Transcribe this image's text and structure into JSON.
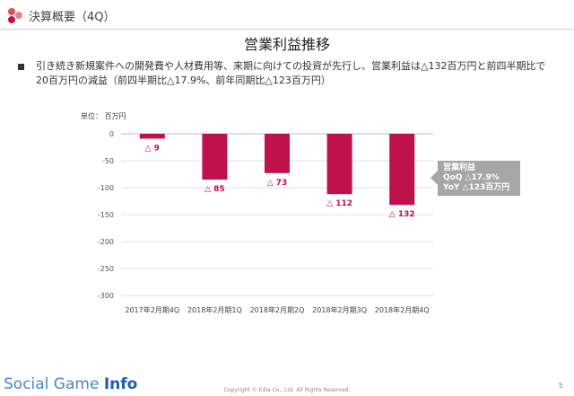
{
  "header": {
    "title": "決算概要（4Q）"
  },
  "slide": {
    "title": "営業利益推移",
    "bullet": "引き続き新規案件への開発費や人材費用等、来期に向けての投資が先行し、営業利益は△132百万円と前四半期比で20百万円の減益（前四半期比△17.9%、前年同期比△123百万円）",
    "unit_label": "単位： 百万円"
  },
  "callout": {
    "title": "営業利益",
    "qoq": "QoQ  △17.9%",
    "yoy": "YoY  △123百万円"
  },
  "footer": {
    "watermark_a": "Social Game ",
    "watermark_b": "Info",
    "copyright": "Copyright © Edia Co., Ltd. All Rights Reserved.",
    "page": "5"
  },
  "colors": {
    "bar": "#c0124a",
    "label": "#c0124a",
    "logo": "#d9534f"
  },
  "chart_data": {
    "type": "bar",
    "categories": [
      "2017年2月期4Q",
      "2018年2月期1Q",
      "2018年2月期2Q",
      "2018年2月期3Q",
      "2018年2月期4Q"
    ],
    "values": [
      -9,
      -85,
      -73,
      -112,
      -132
    ],
    "data_labels": [
      "△ 9",
      "△ 85",
      "△ 73",
      "△ 112",
      "△ 132"
    ],
    "ylim": [
      -300,
      0
    ],
    "yticks": [
      0,
      -50,
      -100,
      -150,
      -200,
      -250,
      -300
    ],
    "ytick_labels": [
      "0",
      "-50",
      "-100",
      "-150",
      "-200",
      "-250",
      "-300"
    ],
    "grid": true,
    "xlabel": "",
    "ylabel": ""
  }
}
